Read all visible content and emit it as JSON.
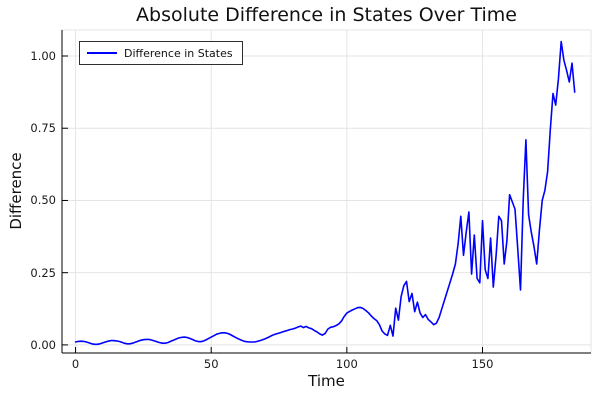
{
  "title": "Absolute Difference in States Over Time",
  "legend": {
    "label": "Difference in States"
  },
  "colors": {
    "line": "#0000ff",
    "grid": "#e4e4e4",
    "axis": "#000000",
    "text": "#111111"
  },
  "chart_data": {
    "type": "line",
    "title": "Absolute Difference in States Over Time",
    "xlabel": "Time",
    "ylabel": "Difference",
    "xlim": [
      -5,
      190
    ],
    "ylim": [
      -0.028,
      1.09
    ],
    "x_ticks": [
      0,
      50,
      100,
      150
    ],
    "x_tick_labels": [
      "0",
      "50",
      "100",
      "150"
    ],
    "y_ticks": [
      0.0,
      0.25,
      0.5,
      0.75,
      1.0
    ],
    "y_tick_labels": [
      "0.00",
      "0.25",
      "0.50",
      "0.75",
      "1.00"
    ],
    "grid": true,
    "legend_position": "top-left",
    "series": [
      {
        "name": "Difference in States",
        "color": "#0000ff",
        "x": [
          0,
          1,
          2,
          3,
          4,
          5,
          6,
          7,
          8,
          9,
          10,
          11,
          12,
          13,
          14,
          15,
          16,
          17,
          18,
          19,
          20,
          21,
          22,
          23,
          24,
          25,
          26,
          27,
          28,
          29,
          30,
          31,
          32,
          33,
          34,
          35,
          36,
          37,
          38,
          39,
          40,
          41,
          42,
          43,
          44,
          45,
          46,
          47,
          48,
          49,
          50,
          51,
          52,
          53,
          54,
          55,
          56,
          57,
          58,
          59,
          60,
          61,
          62,
          63,
          64,
          65,
          66,
          67,
          68,
          69,
          70,
          71,
          72,
          73,
          74,
          75,
          76,
          77,
          78,
          79,
          80,
          81,
          82,
          83,
          84,
          85,
          86,
          87,
          88,
          89,
          90,
          91,
          92,
          93,
          94,
          95,
          96,
          97,
          98,
          99,
          100,
          101,
          102,
          103,
          104,
          105,
          106,
          107,
          108,
          109,
          110,
          111,
          112,
          113,
          114,
          115,
          116,
          117,
          118,
          119,
          120,
          121,
          122,
          123,
          124,
          125,
          126,
          127,
          128,
          129,
          130,
          131,
          132,
          133,
          134,
          135,
          136,
          137,
          138,
          139,
          140,
          141,
          142,
          143,
          144,
          145,
          146,
          147,
          148,
          149,
          150,
          151,
          152,
          153,
          154,
          155,
          156,
          157,
          158,
          159,
          160,
          161,
          162,
          163,
          164,
          165,
          166,
          167,
          168,
          169,
          170,
          171,
          172,
          173,
          174,
          175,
          176,
          177,
          178,
          179,
          180,
          181,
          182,
          183,
          184
        ],
        "y": [
          0.01,
          0.012,
          0.013,
          0.012,
          0.01,
          0.007,
          0.004,
          0.002,
          0.002,
          0.004,
          0.007,
          0.01,
          0.013,
          0.015,
          0.015,
          0.014,
          0.012,
          0.009,
          0.006,
          0.004,
          0.004,
          0.006,
          0.009,
          0.013,
          0.016,
          0.018,
          0.019,
          0.019,
          0.017,
          0.014,
          0.011,
          0.008,
          0.006,
          0.006,
          0.008,
          0.012,
          0.016,
          0.02,
          0.024,
          0.026,
          0.027,
          0.026,
          0.023,
          0.019,
          0.015,
          0.012,
          0.011,
          0.013,
          0.017,
          0.022,
          0.027,
          0.032,
          0.037,
          0.04,
          0.042,
          0.042,
          0.04,
          0.036,
          0.031,
          0.026,
          0.021,
          0.017,
          0.013,
          0.011,
          0.01,
          0.01,
          0.01,
          0.012,
          0.015,
          0.018,
          0.022,
          0.026,
          0.031,
          0.035,
          0.038,
          0.041,
          0.044,
          0.047,
          0.05,
          0.053,
          0.055,
          0.058,
          0.062,
          0.065,
          0.06,
          0.064,
          0.059,
          0.056,
          0.05,
          0.045,
          0.038,
          0.034,
          0.04,
          0.055,
          0.061,
          0.063,
          0.067,
          0.072,
          0.082,
          0.098,
          0.11,
          0.116,
          0.121,
          0.125,
          0.129,
          0.13,
          0.126,
          0.119,
          0.111,
          0.1,
          0.091,
          0.084,
          0.07,
          0.048,
          0.038,
          0.033,
          0.068,
          0.031,
          0.127,
          0.086,
          0.167,
          0.205,
          0.22,
          0.15,
          0.178,
          0.115,
          0.148,
          0.11,
          0.095,
          0.105,
          0.088,
          0.08,
          0.07,
          0.075,
          0.095,
          0.125,
          0.155,
          0.185,
          0.215,
          0.245,
          0.28,
          0.35,
          0.445,
          0.31,
          0.39,
          0.46,
          0.245,
          0.38,
          0.23,
          0.215,
          0.43,
          0.26,
          0.23,
          0.37,
          0.2,
          0.31,
          0.445,
          0.43,
          0.28,
          0.36,
          0.52,
          0.495,
          0.47,
          0.33,
          0.19,
          0.5,
          0.71,
          0.45,
          0.39,
          0.34,
          0.28,
          0.4,
          0.5,
          0.535,
          0.6,
          0.745,
          0.87,
          0.83,
          0.92,
          1.05,
          0.985,
          0.95,
          0.91,
          0.975,
          0.875
        ]
      }
    ]
  }
}
